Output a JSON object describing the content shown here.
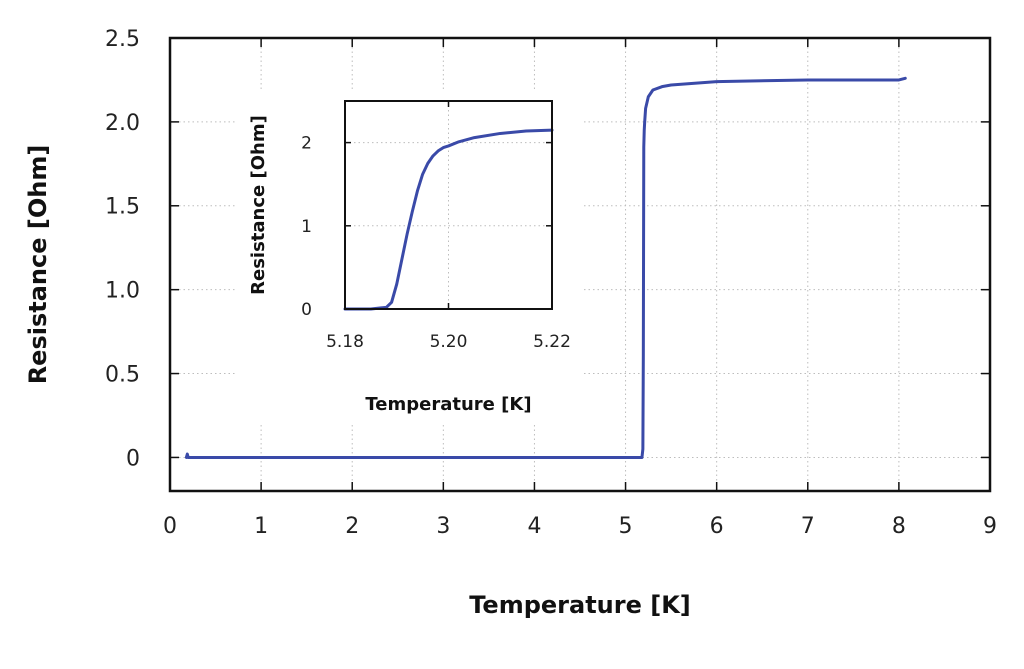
{
  "chart_data": [
    {
      "type": "line",
      "xlabel": "Temperature [K]",
      "ylabel": "Resistance [Ohm]",
      "xlim": [
        0,
        9
      ],
      "ylim": [
        -0.2,
        2.5
      ],
      "x_ticks": [
        0,
        1,
        2,
        3,
        4,
        5,
        6,
        7,
        8,
        9
      ],
      "y_ticks": [
        0,
        0.5,
        1.0,
        1.5,
        2.0,
        2.5
      ],
      "x_tick_labels": [
        "0",
        "1",
        "2",
        "3",
        "4",
        "5",
        "6",
        "7",
        "8",
        "9"
      ],
      "y_tick_labels": [
        "0",
        "0.5",
        "1.0",
        "1.5",
        "2.0",
        "2.5"
      ],
      "grid": true,
      "series_color": "#3a4aa8",
      "series": [
        {
          "x": [
            0.18,
            0.19,
            0.2,
            0.3,
            1.0,
            2.0,
            3.0,
            4.0,
            5.0,
            5.15,
            5.18,
            5.19,
            5.195,
            5.2,
            5.205,
            5.21,
            5.22,
            5.25,
            5.3,
            5.4,
            5.5,
            6.0,
            7.0,
            8.0,
            8.07
          ],
          "y": [
            0.0,
            0.02,
            0.0,
            0.0,
            0.0,
            0.0,
            0.0,
            0.0,
            0.0,
            0.0,
            0.0,
            0.05,
            0.6,
            1.85,
            1.95,
            2.0,
            2.08,
            2.15,
            2.19,
            2.21,
            2.22,
            2.24,
            2.25,
            2.25,
            2.26
          ]
        }
      ]
    },
    {
      "type": "line",
      "xlabel": "Temperature [K]",
      "ylabel": "Resistance [Ohm]",
      "xlim": [
        5.18,
        5.22
      ],
      "ylim": [
        0,
        2.5
      ],
      "x_ticks": [
        5.18,
        5.2,
        5.22
      ],
      "y_ticks": [
        0,
        1,
        2
      ],
      "x_tick_labels": [
        "5.18",
        "5.20",
        "5.22"
      ],
      "y_tick_labels": [
        "0",
        "1",
        "2"
      ],
      "grid": true,
      "series_color": "#3a4aa8",
      "series": [
        {
          "x": [
            5.18,
            5.185,
            5.188,
            5.189,
            5.19,
            5.191,
            5.192,
            5.193,
            5.194,
            5.195,
            5.196,
            5.197,
            5.198,
            5.199,
            5.2,
            5.202,
            5.205,
            5.21,
            5.215,
            5.22
          ],
          "y": [
            0.0,
            0.0,
            0.02,
            0.08,
            0.3,
            0.6,
            0.9,
            1.17,
            1.42,
            1.62,
            1.75,
            1.84,
            1.9,
            1.94,
            1.96,
            2.01,
            2.06,
            2.11,
            2.14,
            2.15
          ]
        }
      ]
    }
  ]
}
